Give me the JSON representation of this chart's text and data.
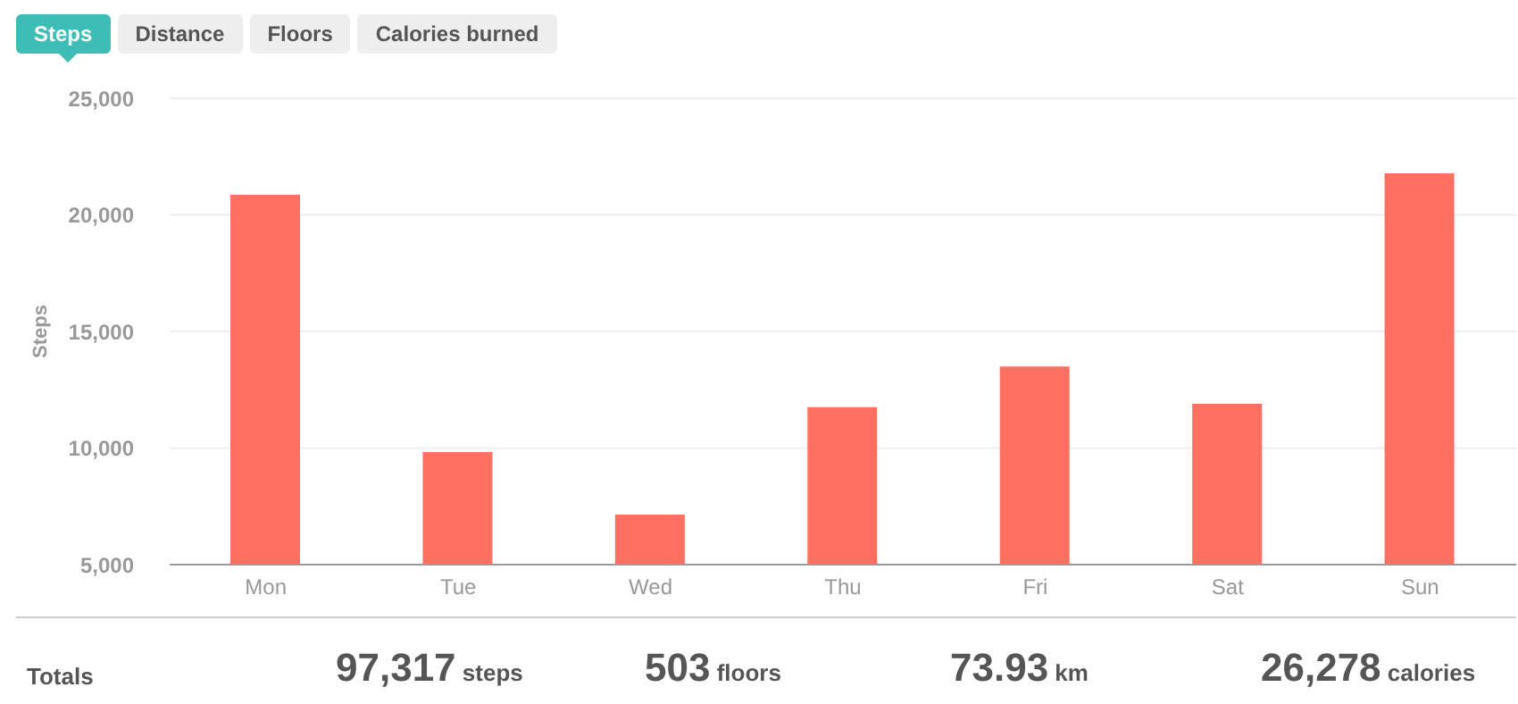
{
  "chart_data": {
    "type": "bar",
    "ylabel": "Steps",
    "categories": [
      "Mon",
      "Tue",
      "Wed",
      "Thu",
      "Fri",
      "Sat",
      "Sun"
    ],
    "values": [
      20860,
      9830,
      7150,
      11750,
      13500,
      11900,
      21780
    ],
    "color": "#ff7060",
    "ylim": [
      5000,
      25000
    ],
    "yticks": [
      {
        "value": 5000,
        "label": "5,000"
      },
      {
        "value": 10000,
        "label": "10,000"
      },
      {
        "value": 15000,
        "label": "15,000"
      },
      {
        "value": 20000,
        "label": "20,000"
      },
      {
        "value": 25000,
        "label": "25,000"
      }
    ],
    "grid": "y",
    "legend": false,
    "annotations": [
      "Steps",
      "Distance",
      "Floors",
      "Calories burned",
      "Totals",
      "97,317 steps",
      "503 floors",
      "73.93 km",
      "26,278 calories"
    ]
  }
}
